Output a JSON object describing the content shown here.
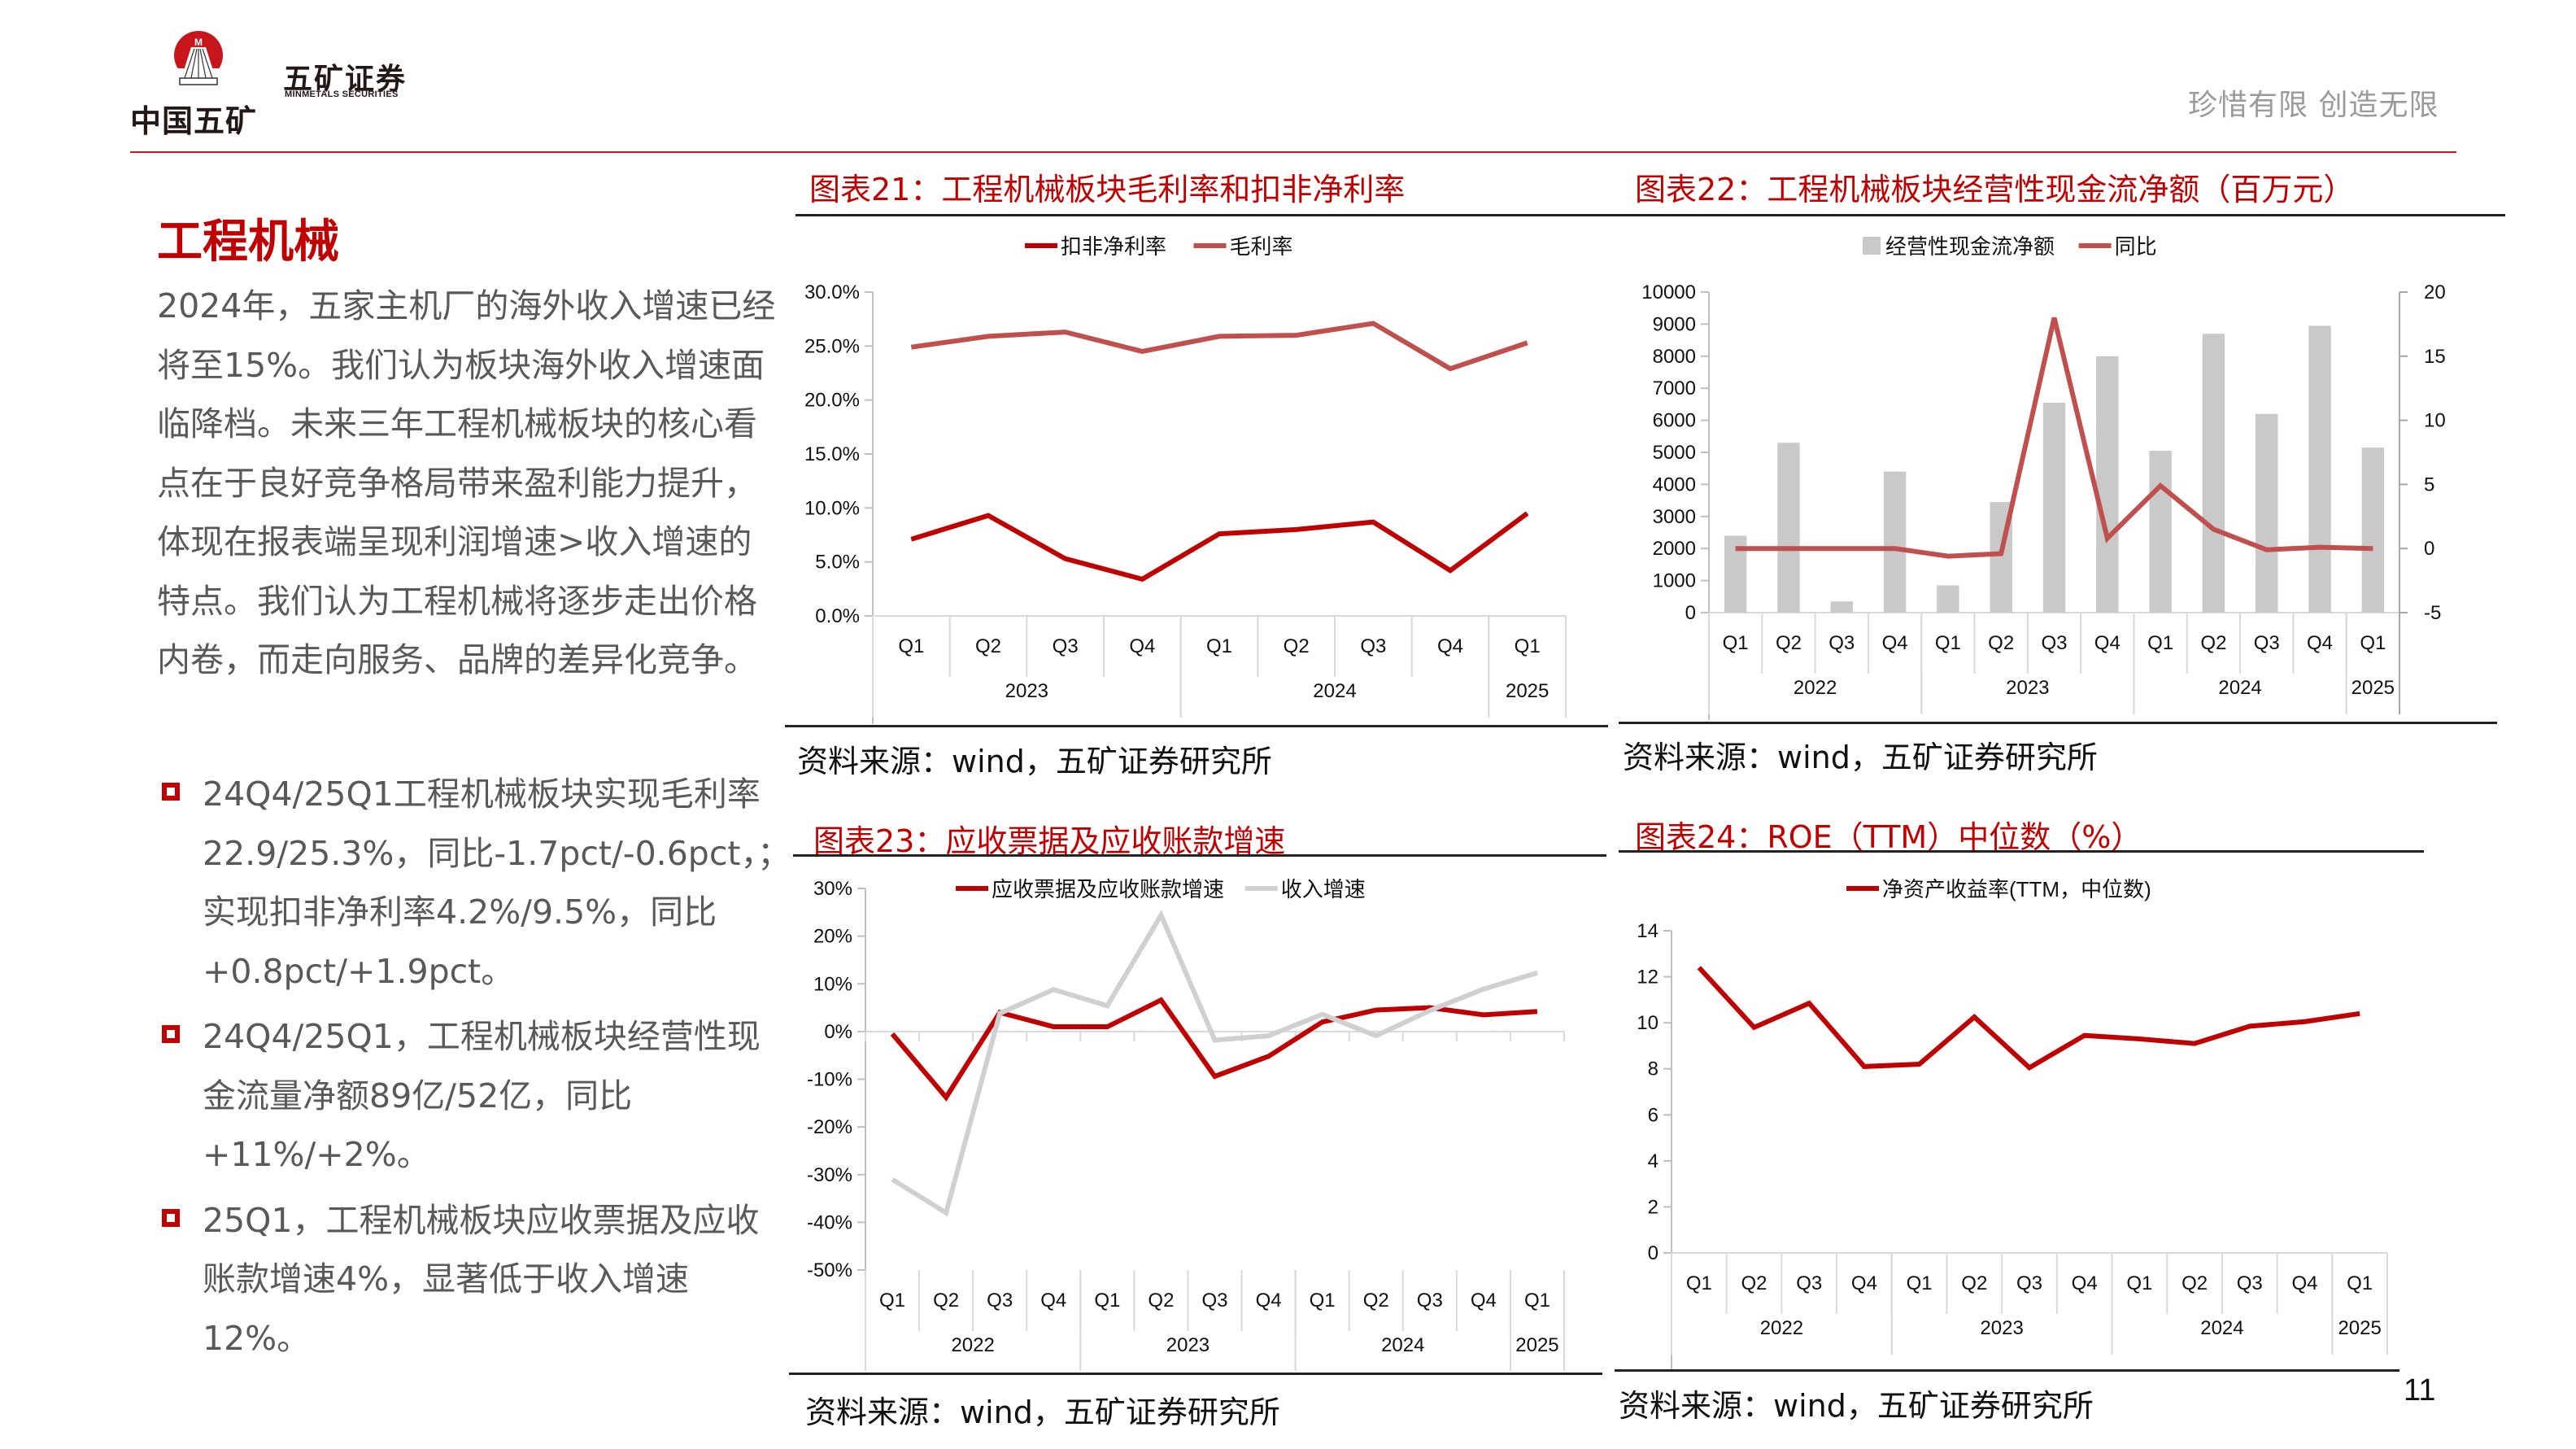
{
  "header": {
    "logo_text": "中国五矿",
    "logo_ring_text": "MINMETALS",
    "brand_cn": "五矿证券",
    "brand_en": "MINMETALS SECURITIES",
    "slogan": "珍惜有限  创造无限",
    "accent_color": "#c8161d"
  },
  "section": {
    "title": "工程机械",
    "intro": "2024年，五家主机厂的海外收入增速已经将至15%。我们认为板块海外收入增速面临降档。未来三年工程机械板块的核心看点在于良好竞争格局带来盈利能力提升，体现在报表端呈现利润增速>收入增速的特点。我们认为工程机械将逐步走出价格内卷，而走向服务、品牌的差异化竞争。",
    "bullets": [
      {
        "text": "24Q4/25Q1工程机械板块实现毛利率22.9/25.3%，同比-1.7pct/-0.6pct，；实现扣非净利率4.2%/9.5%，同比+0.8pct/+1.9pct。"
      },
      {
        "text": "24Q4/25Q1，工程机械板块经营性现金流量净额89亿/52亿，同比+11%/+2%。"
      },
      {
        "text": "25Q1，工程机械板块应收票据及应收账款增速4%，显著低于收入增速12%。"
      }
    ]
  },
  "charts": {
    "c21": {
      "title": "图表21：工程机械板块毛利率和扣非净利率",
      "source": "资料来源：wind，五矿证券研究所"
    },
    "c22": {
      "title": "图表22：工程机械板块经营性现金流净额（百万元）",
      "source": "资料来源：wind，五矿证券研究所"
    },
    "c23": {
      "title": "图表23：应收票据及应收账款增速",
      "source": "资料来源：wind，五矿证券研究所"
    },
    "c24": {
      "title": "图表24：ROE（TTM）中位数（%）",
      "source": "资料来源：wind，五矿证券研究所"
    }
  },
  "page_number": "11",
  "chart_data": [
    {
      "id": "c21",
      "type": "line",
      "title": "图表21：工程机械板块毛利率和扣非净利率",
      "categories": [
        "Q1",
        "Q2",
        "Q3",
        "Q4",
        "Q1",
        "Q2",
        "Q3",
        "Q4",
        "Q1"
      ],
      "category_groups": [
        {
          "label": "2023",
          "span": 4
        },
        {
          "label": "2024",
          "span": 4
        },
        {
          "label": "2025",
          "span": 1
        }
      ],
      "series": [
        {
          "name": "扣非净利率",
          "color": "#c00000",
          "values": [
            7.1,
            9.3,
            5.3,
            3.4,
            7.6,
            8.0,
            8.7,
            4.2,
            9.5
          ]
        },
        {
          "name": "毛利率",
          "color": "#c0504d",
          "values": [
            24.9,
            25.9,
            26.3,
            24.5,
            25.9,
            26.0,
            27.1,
            22.9,
            25.3
          ]
        }
      ],
      "yticks": [
        "0.0%",
        "5.0%",
        "10.0%",
        "15.0%",
        "20.0%",
        "25.0%",
        "30.0%"
      ],
      "ylim": [
        0,
        30
      ],
      "legend_position": "top",
      "grid": false
    },
    {
      "id": "c22",
      "type": "bar",
      "title": "图表22：工程机械板块经营性现金流净额（百万元）",
      "categories": [
        "Q1",
        "Q2",
        "Q3",
        "Q4",
        "Q1",
        "Q2",
        "Q3",
        "Q4",
        "Q1",
        "Q2",
        "Q3",
        "Q4",
        "Q1"
      ],
      "category_groups": [
        {
          "label": "2022",
          "span": 4
        },
        {
          "label": "2023",
          "span": 4
        },
        {
          "label": "2024",
          "span": 4
        },
        {
          "label": "2025",
          "span": 1
        }
      ],
      "series": [
        {
          "name": "经营性现金流净额",
          "type": "bar",
          "axis": "left",
          "color": "#c9c9c9",
          "values": [
            2400,
            5300,
            350,
            4400,
            850,
            3450,
            6550,
            8000,
            5050,
            8700,
            6200,
            8950,
            5150
          ]
        },
        {
          "name": "同比",
          "type": "line",
          "axis": "right",
          "color": "#c0504d",
          "values": [
            0,
            0,
            0,
            0,
            -0.6,
            -0.4,
            18.0,
            0.8,
            4.9,
            1.5,
            -0.1,
            0.1,
            0.0
          ]
        }
      ],
      "yticks_left": [
        "0",
        "1000",
        "2000",
        "3000",
        "4000",
        "5000",
        "6000",
        "7000",
        "8000",
        "9000",
        "10000"
      ],
      "yticks_right": [
        "-5",
        "0",
        "5",
        "10",
        "15",
        "20"
      ],
      "ylim_left": [
        0,
        10000
      ],
      "ylim_right": [
        -5,
        20
      ],
      "legend_position": "top"
    },
    {
      "id": "c23",
      "type": "line",
      "title": "图表23：应收票据及应收账款增速",
      "categories": [
        "Q1",
        "Q2",
        "Q3",
        "Q4",
        "Q1",
        "Q2",
        "Q3",
        "Q4",
        "Q1",
        "Q2",
        "Q3",
        "Q4",
        "Q1"
      ],
      "category_groups": [
        {
          "label": "2022",
          "span": 4
        },
        {
          "label": "2023",
          "span": 4
        },
        {
          "label": "2024",
          "span": 4
        },
        {
          "label": "2025",
          "span": 1
        }
      ],
      "series": [
        {
          "name": "应收票据及应收账款增速",
          "color": "#c00000",
          "values": [
            -0.5,
            -13.8,
            4.0,
            1.0,
            1.0,
            6.6,
            -9.4,
            -5.2,
            2.0,
            4.5,
            5.0,
            3.5,
            4.2
          ]
        },
        {
          "name": "收入增速",
          "color": "#d0d0d0",
          "values": [
            -31.0,
            -38.0,
            3.8,
            8.8,
            5.4,
            24.4,
            -1.8,
            -0.9,
            3.6,
            -0.9,
            4.4,
            8.9,
            12.3
          ]
        }
      ],
      "yticks": [
        "-50%",
        "-40%",
        "-30%",
        "-20%",
        "-10%",
        "0%",
        "10%",
        "20%",
        "30%"
      ],
      "ylim": [
        -50,
        30
      ],
      "legend_position": "top"
    },
    {
      "id": "c24",
      "type": "line",
      "title": "图表24：ROE（TTM）中位数（%）",
      "categories": [
        "Q1",
        "Q2",
        "Q3",
        "Q4",
        "Q1",
        "Q2",
        "Q3",
        "Q4",
        "Q1",
        "Q2",
        "Q3",
        "Q4",
        "Q1"
      ],
      "category_groups": [
        {
          "label": "2022",
          "span": 4
        },
        {
          "label": "2023",
          "span": 4
        },
        {
          "label": "2024",
          "span": 4
        },
        {
          "label": "2025",
          "span": 1
        }
      ],
      "series": [
        {
          "name": "净资产收益率(TTM，中位数)",
          "color": "#c00000",
          "values": [
            12.4,
            9.8,
            10.85,
            8.1,
            8.2,
            10.25,
            8.05,
            9.45,
            9.3,
            9.1,
            9.85,
            10.05,
            10.4
          ]
        }
      ],
      "yticks": [
        "0",
        "2",
        "4",
        "6",
        "8",
        "10",
        "12",
        "14"
      ],
      "ylim": [
        0,
        14
      ],
      "legend_position": "top"
    }
  ]
}
